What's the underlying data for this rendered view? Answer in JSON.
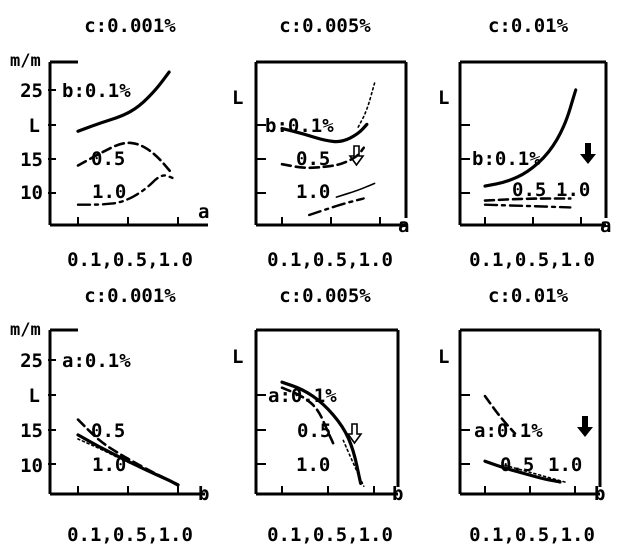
{
  "chart_data": [
    {
      "type": "line",
      "title": "c:0.001%",
      "ylabel": "L",
      "yunit": "m/m",
      "xlabel": "a",
      "ticklabels_y": [
        "25",
        "L",
        "15",
        "10"
      ],
      "yticks": [
        25,
        20,
        15,
        10
      ],
      "xtick_label": "0.1,0.5,1.0",
      "xlim": [
        0.1,
        1.0
      ],
      "ylim": [
        6.5,
        28
      ],
      "series": [
        {
          "name": "b:0.1%",
          "style": "solid",
          "points": [
            [
              0.1,
              19
            ],
            [
              0.3,
              20.2
            ],
            [
              0.5,
              21.2
            ],
            [
              0.65,
              22.6
            ],
            [
              0.8,
              25
            ],
            [
              0.92,
              27.6
            ]
          ]
        },
        {
          "name": "0.5",
          "style": "dashed",
          "points": [
            [
              0.1,
              14
            ],
            [
              0.3,
              15.8
            ],
            [
              0.5,
              17.4
            ],
            [
              0.65,
              17.2
            ],
            [
              0.8,
              15.6
            ],
            [
              0.95,
              12.8
            ]
          ]
        },
        {
          "name": "1.0",
          "style": "dashdot",
          "points": [
            [
              0.1,
              8.3
            ],
            [
              0.3,
              8.3
            ],
            [
              0.5,
              8.6
            ],
            [
              0.7,
              10.4
            ],
            [
              0.85,
              12.8
            ],
            [
              0.95,
              12.2
            ]
          ]
        }
      ]
    },
    {
      "type": "line",
      "title": "c:0.005%",
      "ylabel": "L",
      "xlabel": "a",
      "xtick_label": "0.1,0.5,1.0",
      "xlim": [
        0.1,
        1.0
      ],
      "ylim": [
        6.5,
        28
      ],
      "series": [
        {
          "name": "b:0.1%",
          "style": "solid",
          "points": [
            [
              0.1,
              19.4
            ],
            [
              0.3,
              18.6
            ],
            [
              0.5,
              17.6
            ],
            [
              0.65,
              17.4
            ],
            [
              0.8,
              18.6
            ],
            [
              0.88,
              20
            ]
          ]
        },
        {
          "name": "0.5",
          "style": "dashed",
          "points": [
            [
              0.1,
              14.2
            ],
            [
              0.3,
              13.6
            ],
            [
              0.5,
              13.8
            ],
            [
              0.65,
              14.2
            ],
            [
              0.8,
              15.4
            ],
            [
              0.85,
              16.6
            ]
          ]
        },
        {
          "name": "1.0",
          "style": "dashdot",
          "points": [
            [
              0.35,
              6.8
            ],
            [
              0.5,
              7.6
            ],
            [
              0.7,
              8.6
            ],
            [
              0.85,
              9.2
            ]
          ]
        },
        {
          "name": "",
          "style": "dotted",
          "points": [
            [
              0.8,
              19.6
            ],
            [
              0.88,
              22
            ],
            [
              0.95,
              26
            ]
          ]
        },
        {
          "name": "",
          "style": "solid-thin",
          "points": [
            [
              0.6,
              9.4
            ],
            [
              0.8,
              10.4
            ],
            [
              0.95,
              11.4
            ]
          ]
        }
      ]
    },
    {
      "type": "line",
      "title": "c:0.01%",
      "ylabel": "L",
      "xlabel": "a",
      "xtick_label": "0.1,0.5,1.0",
      "xlim": [
        0.1,
        1.0
      ],
      "ylim": [
        6.5,
        28
      ],
      "series": [
        {
          "name": "b:0.1%",
          "style": "solid",
          "points": [
            [
              0.1,
              11
            ],
            [
              0.3,
              11.6
            ],
            [
              0.5,
              13
            ],
            [
              0.7,
              15.8
            ],
            [
              0.85,
              19.8
            ],
            [
              0.95,
              25
            ]
          ]
        },
        {
          "name": "0.5",
          "style": "dashed",
          "points": [
            [
              0.1,
              8.9
            ],
            [
              0.5,
              9.2
            ],
            [
              0.9,
              9.2
            ]
          ]
        },
        {
          "name": "1.0",
          "style": "dashdot",
          "points": [
            [
              0.1,
              8.3
            ],
            [
              0.5,
              8.1
            ],
            [
              0.9,
              7.9
            ]
          ]
        }
      ]
    },
    {
      "type": "line",
      "title": "c:0.001%",
      "ylabel": "L",
      "yunit": "m/m",
      "xlabel": "b",
      "ticklabels_y": [
        "25",
        "L",
        "15",
        "10"
      ],
      "yticks": [
        25,
        20,
        15,
        10
      ],
      "xtick_label": "0.1,0.5,1.0",
      "xlim": [
        0.1,
        1.0
      ],
      "ylim": [
        6.5,
        28
      ],
      "series": [
        {
          "name": "a:0.1%",
          "style": "solid",
          "points": [
            [
              0.1,
              14.2
            ],
            [
              0.3,
              12.4
            ],
            [
              0.5,
              10.8
            ],
            [
              0.7,
              9.2
            ],
            [
              0.9,
              7.8
            ],
            [
              1.0,
              7
            ]
          ]
        },
        {
          "name": "0.5",
          "style": "dashed",
          "points": [
            [
              0.1,
              16.4
            ],
            [
              0.3,
              13.2
            ],
            [
              0.5,
              11.2
            ],
            [
              0.7,
              9.4
            ],
            [
              0.9,
              7.8
            ],
            [
              1.0,
              6.9
            ]
          ]
        },
        {
          "name": "1.0",
          "style": "dotted",
          "points": [
            [
              0.1,
              13.6
            ],
            [
              0.3,
              12.2
            ],
            [
              0.5,
              10.6
            ],
            [
              0.7,
              9.2
            ],
            [
              0.9,
              7.8
            ],
            [
              1.0,
              7
            ]
          ]
        }
      ]
    },
    {
      "type": "line",
      "title": "c:0.005%",
      "ylabel": "L",
      "xlabel": "b",
      "xtick_label": "0.1,0.5,1.0",
      "xlim": [
        0.1,
        1.0
      ],
      "ylim": [
        6.5,
        28
      ],
      "series": [
        {
          "name": "a:0.1%",
          "style": "solid",
          "points": [
            [
              0.1,
              21.8
            ],
            [
              0.3,
              20.8
            ],
            [
              0.5,
              18.8
            ],
            [
              0.7,
              15.4
            ],
            [
              0.8,
              12
            ],
            [
              0.87,
              7.2
            ]
          ]
        },
        {
          "name": "0.5",
          "style": "dashed",
          "points": [
            [
              0.1,
              21
            ],
            [
              0.3,
              19.8
            ],
            [
              0.45,
              18
            ],
            [
              0.55,
              14.6
            ],
            [
              0.6,
              13
            ]
          ]
        },
        {
          "name": "1.0",
          "style": "dotted",
          "points": [
            [
              0.7,
              13.4
            ],
            [
              0.8,
              10
            ],
            [
              0.9,
              6.8
            ]
          ]
        }
      ]
    },
    {
      "type": "line",
      "title": "c:0.01%",
      "ylabel": "L",
      "xlabel": "b",
      "xtick_label": "0.1,0.5,1.0",
      "xlim": [
        0.1,
        1.0
      ],
      "ylim": [
        6.5,
        28
      ],
      "series": [
        {
          "name": "a:0.1%",
          "style": "dashed",
          "points": [
            [
              0.1,
              19.8
            ],
            [
              0.25,
              16.8
            ],
            [
              0.4,
              14.4
            ]
          ]
        },
        {
          "name": "0.5",
          "style": "solid",
          "points": [
            [
              0.1,
              10.4
            ],
            [
              0.3,
              9.4
            ],
            [
              0.5,
              8.6
            ],
            [
              0.7,
              7.8
            ],
            [
              0.85,
              7.4
            ]
          ]
        },
        {
          "name": "1.0",
          "style": "dotted",
          "points": [
            [
              0.3,
              9.8
            ],
            [
              0.6,
              8.6
            ],
            [
              0.9,
              7.4
            ]
          ]
        }
      ]
    }
  ]
}
